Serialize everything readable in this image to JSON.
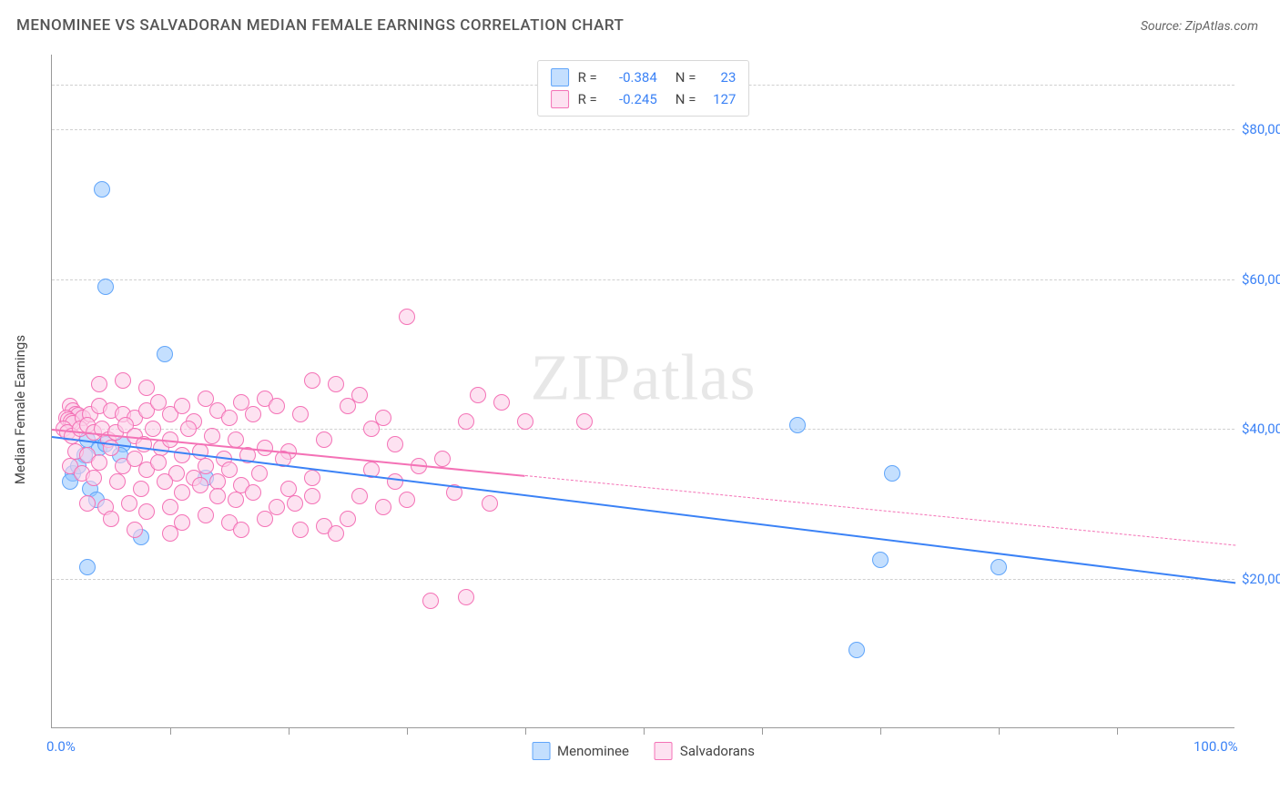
{
  "header": {
    "title": "MENOMINEE VS SALVADORAN MEDIAN FEMALE EARNINGS CORRELATION CHART",
    "source_prefix": "Source: ",
    "source_name": "ZipAtlas.com"
  },
  "chart": {
    "type": "scatter",
    "ylabel": "Median Female Earnings",
    "watermark_bold": "ZIP",
    "watermark_thin": "atlas",
    "xlim": [
      0,
      100
    ],
    "ylim": [
      0,
      90000
    ],
    "x_ticks_minor": [
      10,
      20,
      30,
      40,
      50,
      60,
      70,
      80,
      90
    ],
    "x_tick_labels": [
      {
        "pos": 0,
        "label": "0.0%"
      },
      {
        "pos": 100,
        "label": "100.0%"
      }
    ],
    "y_gridlines": [
      20000,
      40000,
      60000,
      80000,
      86000
    ],
    "y_tick_labels": [
      {
        "pos": 20000,
        "label": "$20,000"
      },
      {
        "pos": 40000,
        "label": "$40,000"
      },
      {
        "pos": 60000,
        "label": "$60,000"
      },
      {
        "pos": 80000,
        "label": "$80,000"
      }
    ],
    "grid_color": "#d0d0d0",
    "background_color": "#ffffff",
    "axis_color": "#999999",
    "tick_label_color": "#3b82f6",
    "point_radius": 9,
    "series": [
      {
        "name": "Menominee",
        "fill": "rgba(147,197,253,0.55)",
        "stroke": "#60a5fa",
        "R": "-0.384",
        "N": "23",
        "trend": {
          "x1": 0,
          "y1": 39000,
          "x2": 100,
          "y2": 19500,
          "solid_until_x": 100,
          "color": "#3b82f6",
          "width": 2.5
        },
        "points": [
          [
            4.2,
            72000
          ],
          [
            4.5,
            59000
          ],
          [
            9.5,
            50000
          ],
          [
            2.0,
            42000
          ],
          [
            2.8,
            36500
          ],
          [
            3.0,
            38500
          ],
          [
            4.0,
            37500
          ],
          [
            6.0,
            38000
          ],
          [
            1.8,
            34000
          ],
          [
            1.5,
            33000
          ],
          [
            3.2,
            32000
          ],
          [
            3.8,
            30500
          ],
          [
            13.0,
            33500
          ],
          [
            7.5,
            25500
          ],
          [
            3.0,
            21500
          ],
          [
            63.0,
            40500
          ],
          [
            71.0,
            34000
          ],
          [
            70.0,
            22500
          ],
          [
            80.0,
            21500
          ],
          [
            68.0,
            10500
          ],
          [
            4.5,
            38000
          ],
          [
            2.2,
            35000
          ],
          [
            5.8,
            36500
          ]
        ]
      },
      {
        "name": "Salvadorans",
        "fill": "rgba(251,207,232,0.6)",
        "stroke": "#f472b6",
        "R": "-0.245",
        "N": "127",
        "trend": {
          "x1": 0,
          "y1": 40000,
          "x2": 100,
          "y2": 24500,
          "solid_until_x": 40,
          "color": "#f472b6",
          "width": 2.2
        },
        "points": [
          [
            30.0,
            55000
          ],
          [
            4.0,
            46000
          ],
          [
            6.0,
            46500
          ],
          [
            8.0,
            45500
          ],
          [
            22.0,
            46500
          ],
          [
            24.0,
            46000
          ],
          [
            26.0,
            44500
          ],
          [
            1.5,
            43000
          ],
          [
            1.8,
            42500
          ],
          [
            2.0,
            42000
          ],
          [
            2.2,
            41800
          ],
          [
            1.2,
            41500
          ],
          [
            1.4,
            41200
          ],
          [
            1.6,
            41000
          ],
          [
            1.8,
            40800
          ],
          [
            2.6,
            41500
          ],
          [
            3.2,
            42000
          ],
          [
            4.0,
            43000
          ],
          [
            5.0,
            42500
          ],
          [
            6.0,
            42000
          ],
          [
            7.0,
            41500
          ],
          [
            8.0,
            42500
          ],
          [
            9.0,
            43500
          ],
          [
            10.0,
            42000
          ],
          [
            11.0,
            43000
          ],
          [
            12.0,
            41000
          ],
          [
            13.0,
            44000
          ],
          [
            14.0,
            42500
          ],
          [
            15.0,
            41500
          ],
          [
            16.0,
            43500
          ],
          [
            17.0,
            42000
          ],
          [
            18.0,
            44000
          ],
          [
            19.0,
            43000
          ],
          [
            20.0,
            37000
          ],
          [
            21.0,
            42000
          ],
          [
            23.0,
            38500
          ],
          [
            25.0,
            43000
          ],
          [
            27.0,
            40000
          ],
          [
            28.0,
            41500
          ],
          [
            29.0,
            38000
          ],
          [
            35.0,
            41000
          ],
          [
            36.0,
            44500
          ],
          [
            38.0,
            43500
          ],
          [
            40.0,
            41000
          ],
          [
            45.0,
            41000
          ],
          [
            1.0,
            40000
          ],
          [
            1.3,
            39500
          ],
          [
            1.7,
            39000
          ],
          [
            2.4,
            40000
          ],
          [
            3.0,
            40500
          ],
          [
            3.5,
            39500
          ],
          [
            4.2,
            40000
          ],
          [
            4.8,
            38500
          ],
          [
            5.4,
            39500
          ],
          [
            6.2,
            40500
          ],
          [
            7.0,
            39000
          ],
          [
            7.8,
            38000
          ],
          [
            8.5,
            40000
          ],
          [
            9.2,
            37500
          ],
          [
            10.0,
            38500
          ],
          [
            11.5,
            40000
          ],
          [
            12.5,
            37000
          ],
          [
            13.5,
            39000
          ],
          [
            14.5,
            36000
          ],
          [
            15.5,
            38500
          ],
          [
            16.5,
            36500
          ],
          [
            18.0,
            37500
          ],
          [
            19.5,
            36000
          ],
          [
            2.0,
            37000
          ],
          [
            3.0,
            36500
          ],
          [
            4.0,
            35500
          ],
          [
            5.0,
            37500
          ],
          [
            6.0,
            35000
          ],
          [
            7.0,
            36000
          ],
          [
            8.0,
            34500
          ],
          [
            9.0,
            35500
          ],
          [
            10.5,
            34000
          ],
          [
            11.0,
            36500
          ],
          [
            12.0,
            33500
          ],
          [
            13.0,
            35000
          ],
          [
            14.0,
            33000
          ],
          [
            15.0,
            34500
          ],
          [
            16.0,
            32500
          ],
          [
            17.5,
            34000
          ],
          [
            27.0,
            34500
          ],
          [
            29.0,
            33000
          ],
          [
            31.0,
            35000
          ],
          [
            33.0,
            36000
          ],
          [
            1.5,
            35000
          ],
          [
            2.5,
            34000
          ],
          [
            3.5,
            33500
          ],
          [
            5.5,
            33000
          ],
          [
            7.5,
            32000
          ],
          [
            9.5,
            33000
          ],
          [
            11.0,
            31500
          ],
          [
            12.5,
            32500
          ],
          [
            14.0,
            31000
          ],
          [
            15.5,
            30500
          ],
          [
            17.0,
            31500
          ],
          [
            20.5,
            30000
          ],
          [
            22.0,
            31000
          ],
          [
            3.0,
            30000
          ],
          [
            4.5,
            29500
          ],
          [
            6.5,
            30000
          ],
          [
            8.0,
            29000
          ],
          [
            10.0,
            29500
          ],
          [
            13.0,
            28500
          ],
          [
            19.0,
            29500
          ],
          [
            5.0,
            28000
          ],
          [
            11.0,
            27500
          ],
          [
            15.0,
            27500
          ],
          [
            23.0,
            27000
          ],
          [
            25.0,
            28000
          ],
          [
            7.0,
            26500
          ],
          [
            10.0,
            26000
          ],
          [
            16.0,
            26500
          ],
          [
            21.0,
            26500
          ],
          [
            24.0,
            26000
          ],
          [
            18.0,
            28000
          ],
          [
            20.0,
            32000
          ],
          [
            22.0,
            33500
          ],
          [
            32.0,
            17000
          ],
          [
            35.0,
            17500
          ],
          [
            34.0,
            31500
          ],
          [
            30.0,
            30500
          ],
          [
            28.0,
            29500
          ],
          [
            26.0,
            31000
          ],
          [
            37.0,
            30000
          ]
        ]
      }
    ],
    "legend_bottom": [
      {
        "label": "Menominee",
        "fill": "rgba(147,197,253,0.55)",
        "stroke": "#60a5fa"
      },
      {
        "label": "Salvadorans",
        "fill": "rgba(251,207,232,0.6)",
        "stroke": "#f472b6"
      }
    ]
  }
}
